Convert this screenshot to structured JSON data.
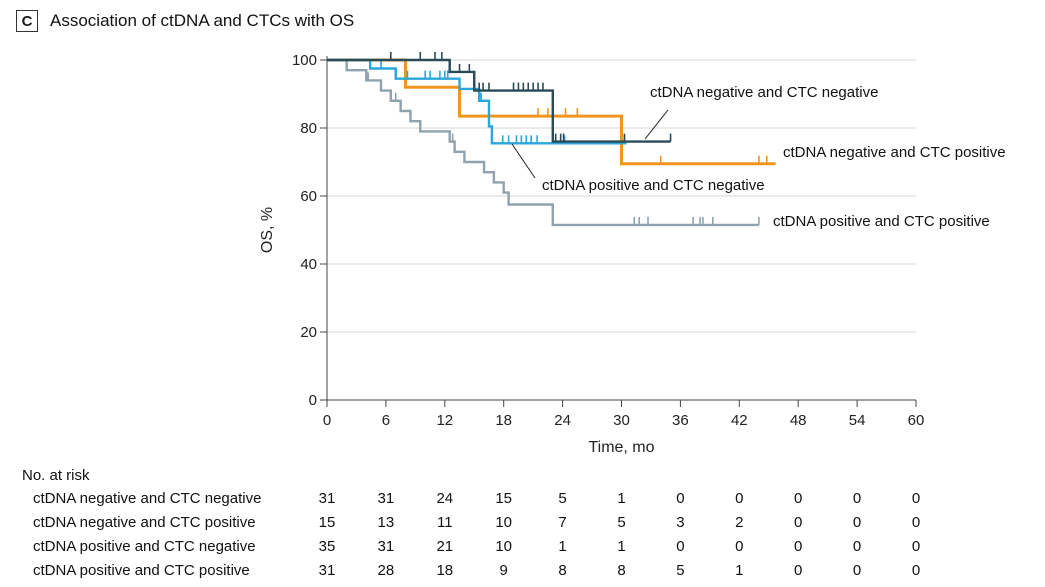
{
  "panel": {
    "letter": "C",
    "title": "Association of ctDNA and CTCs with OS"
  },
  "chart_data": {
    "type": "line",
    "subtype": "kaplan-meier-step",
    "ylabel": "OS, %",
    "xlabel": "Time, mo",
    "xlim": [
      0,
      60
    ],
    "ylim": [
      0,
      100
    ],
    "xticks": [
      0,
      6,
      12,
      18,
      24,
      30,
      36,
      42,
      48,
      54,
      60
    ],
    "yticks": [
      0,
      20,
      40,
      60,
      80,
      100
    ],
    "grid": "horizontal",
    "series": [
      {
        "name": "ctDNA negative and CTC negative",
        "color": "#2b4a57",
        "points": [
          [
            0,
            100
          ],
          [
            12.5,
            100
          ],
          [
            12.5,
            96.5
          ],
          [
            15,
            96.5
          ],
          [
            15,
            91
          ],
          [
            23,
            91
          ],
          [
            23,
            76
          ],
          [
            35,
            76
          ]
        ],
        "censor": [
          6.5,
          9.5,
          11,
          11.7,
          13.5,
          14.5,
          15.5,
          15.9,
          16.5,
          19,
          19.5,
          20,
          20.5,
          21,
          21.5,
          22,
          23.3,
          23.8,
          24.1,
          30.3,
          35
        ]
      },
      {
        "name": "ctDNA negative and CTC positive",
        "color": "#f0961e",
        "points": [
          [
            0,
            100
          ],
          [
            8,
            100
          ],
          [
            8,
            92
          ],
          [
            13.5,
            92
          ],
          [
            13.5,
            83.5
          ],
          [
            30,
            83.5
          ],
          [
            30,
            69.5
          ],
          [
            45.7,
            69.5
          ]
        ],
        "censor": [
          8,
          21.5,
          22.5,
          24.3,
          25.5,
          34,
          44,
          44.8
        ]
      },
      {
        "name": "ctDNA positive and CTC negative",
        "color": "#2aa6db",
        "points": [
          [
            0,
            100
          ],
          [
            4.4,
            100
          ],
          [
            4.4,
            97.5
          ],
          [
            7,
            97.5
          ],
          [
            7,
            94.5
          ],
          [
            13.5,
            94.5
          ],
          [
            13.5,
            91.5
          ],
          [
            15.5,
            91.5
          ],
          [
            15.5,
            88
          ],
          [
            16.5,
            88
          ],
          [
            16.5,
            80.5
          ],
          [
            16.8,
            80.5
          ],
          [
            16.8,
            75.5
          ],
          [
            30.5,
            75.5
          ]
        ],
        "censor": [
          5.5,
          8.2,
          10,
          10.5,
          11.5,
          12,
          12.3,
          13.5,
          15.7,
          17.9,
          18.5,
          19.3,
          19.8,
          20.3,
          20.8,
          21.4,
          24.2,
          30.3
        ]
      },
      {
        "name": "ctDNA positive and CTC positive",
        "color": "#8fa3ae",
        "points": [
          [
            0,
            100
          ],
          [
            2,
            100
          ],
          [
            2,
            97
          ],
          [
            4,
            97
          ],
          [
            4,
            94
          ],
          [
            5.5,
            94
          ],
          [
            5.5,
            91
          ],
          [
            6.5,
            91
          ],
          [
            6.5,
            88
          ],
          [
            7.5,
            88
          ],
          [
            7.5,
            85
          ],
          [
            8.5,
            85
          ],
          [
            8.5,
            82
          ],
          [
            9.5,
            82
          ],
          [
            9.5,
            79
          ],
          [
            12.5,
            79
          ],
          [
            12.5,
            76
          ],
          [
            13,
            76
          ],
          [
            13,
            73
          ],
          [
            14,
            73
          ],
          [
            14,
            70
          ],
          [
            16,
            70
          ],
          [
            16,
            67
          ],
          [
            17,
            67
          ],
          [
            17,
            64
          ],
          [
            18,
            64
          ],
          [
            18,
            61
          ],
          [
            18.5,
            61
          ],
          [
            18.5,
            57.5
          ],
          [
            23,
            57.5
          ],
          [
            23,
            51.5
          ],
          [
            44,
            51.5
          ]
        ],
        "censor": [
          4.2,
          6.5,
          7,
          8.5,
          12.8,
          31.3,
          31.8,
          32.7,
          37.3,
          38,
          38.3,
          39.3,
          44
        ]
      }
    ],
    "annotations": [
      {
        "text": "ctDNA negative and CTC negative",
        "series": 0
      },
      {
        "text": "ctDNA negative and CTC positive",
        "series": 1
      },
      {
        "text": "ctDNA positive and CTC negative",
        "series": 2
      },
      {
        "text": "ctDNA positive and CTC positive",
        "series": 3
      }
    ],
    "risk_table": {
      "title": "No. at risk",
      "times": [
        0,
        6,
        12,
        18,
        24,
        30,
        36,
        42,
        48,
        54,
        60
      ],
      "rows": [
        {
          "name": "ctDNA negative and CTC negative",
          "values": [
            "31",
            "31",
            "24",
            "15",
            "5",
            "1",
            "0",
            "0",
            "0",
            "0",
            "0"
          ]
        },
        {
          "name": "ctDNA negative and CTC positive",
          "values": [
            "15",
            "13",
            "11",
            "10",
            "7",
            "5",
            "3",
            "2",
            "0",
            "0",
            "0"
          ]
        },
        {
          "name": "ctDNA positive and CTC negative",
          "values": [
            "35",
            "31",
            "21",
            "10",
            "1",
            "1",
            "0",
            "0",
            "0",
            "0",
            "0"
          ]
        },
        {
          "name": "ctDNA positive and CTC positive",
          "values": [
            "31",
            "28",
            "18",
            "9",
            "8",
            "8",
            "5",
            "1",
            "0",
            "0",
            "0"
          ]
        }
      ]
    }
  }
}
